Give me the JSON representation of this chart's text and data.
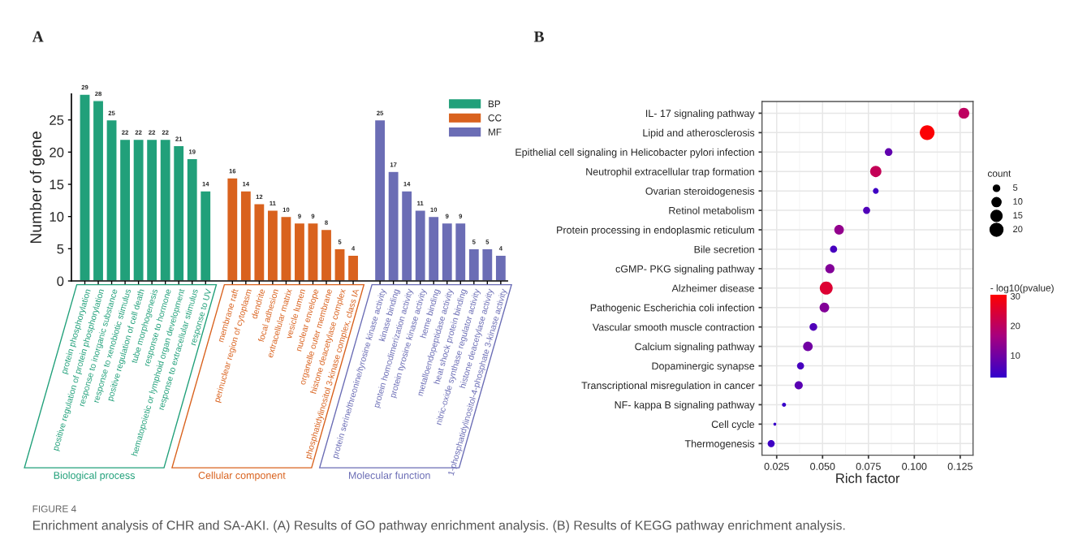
{
  "chart_data": [
    {
      "type": "bar",
      "title": "A",
      "ylabel": "Number of gene",
      "categories": [
        "protein phosphorylation",
        "positive regulation of protein phosphorylation",
        "response to inorganic substance",
        "response to xenobiotic stimulus",
        "positive regulation of cell death",
        "tube morphogenesis",
        "response to hormone",
        "hematopoietic or lymphoid organ development",
        "response to extracellular stimulus",
        "response to UV",
        null,
        "membrane raft",
        "perinuclear region of cytoplasm",
        "dendrite",
        "focal adhesion",
        "extracellular matrix",
        "vesicle lumen",
        "nuclear envelope",
        "organelle outer membrane",
        "histone deacetylase complex",
        "phosphatidylinositol 3-kinase complex, class IA",
        null,
        "protein serine/threonine/tyrosine kinase activity",
        "kinase binding",
        "protein homodimerization activity",
        "protein tyrosine kinase activity",
        "heme binding",
        "metalloendopeptidase activity",
        "heat shock protein binding",
        "nitric-oxide synthase regulator activity",
        "histone deacetylase activity",
        "1-phosphatidylinositol-4-phosphate 3-kinase activity"
      ],
      "series": [
        {
          "name": "BP",
          "color": "#21a07a",
          "values": [
            29,
            28,
            25,
            22,
            22,
            22,
            22,
            21,
            19,
            14,
            null,
            null,
            null,
            null,
            null,
            null,
            null,
            null,
            null,
            null,
            null,
            null,
            null,
            null,
            null,
            null,
            null,
            null,
            null,
            null,
            null,
            null
          ]
        },
        {
          "name": "CC",
          "color": "#d9621e",
          "values": [
            null,
            null,
            null,
            null,
            null,
            null,
            null,
            null,
            null,
            null,
            null,
            16,
            14,
            12,
            11,
            10,
            9,
            9,
            8,
            5,
            4,
            null,
            null,
            null,
            null,
            null,
            null,
            null,
            null,
            null,
            null,
            null
          ]
        },
        {
          "name": "MF",
          "color": "#6b6db5",
          "values": [
            null,
            null,
            null,
            null,
            null,
            null,
            null,
            null,
            null,
            null,
            null,
            null,
            null,
            null,
            null,
            null,
            null,
            null,
            null,
            null,
            null,
            null,
            25,
            17,
            14,
            11,
            10,
            9,
            9,
            5,
            5,
            4
          ]
        }
      ],
      "ylim": [
        0,
        29
      ],
      "yticks": [
        0,
        5,
        10,
        15,
        20,
        25
      ],
      "data_labels": true,
      "legend": "top right",
      "annotations": [
        "Biological process",
        "Cellular component",
        "Molecular function",
        "FIGURE 4",
        "Enrichment analysis of CHR and SA-AKI. (A) Results of GO pathway enrichment analysis. (B) Results of KEGG pathway enrichment analysis."
      ]
    },
    {
      "type": "bubble",
      "title": "B",
      "xlabel": "Rich factor",
      "orientation": "horizontal",
      "categories": [
        "IL- 17 signaling pathway",
        "Lipid and atherosclerosis",
        "Epithelial cell signaling in Helicobacter pylori infection",
        "Neutrophil extracellular trap formation",
        "Ovarian steroidogenesis",
        "Retinol metabolism",
        "Protein processing in endoplasmic reticulum",
        "Bile secretion",
        "cGMP- PKG signaling pathway",
        "Alzheimer disease",
        "Pathogenic Escherichia coli infection",
        "Vascular smooth muscle contraction",
        "Calcium signaling pathway",
        "Dopaminergic synapse",
        "Transcriptional misregulation in cancer",
        "NF- kappa B signaling pathway",
        "Cell cycle",
        "Thermogenesis"
      ],
      "values": [
        0.127,
        0.107,
        0.086,
        0.079,
        0.079,
        0.074,
        0.059,
        0.056,
        0.054,
        0.052,
        0.051,
        0.045,
        0.042,
        0.038,
        0.037,
        0.029,
        0.024,
        0.022
      ],
      "sizes": [
        14,
        26,
        7,
        15,
        4,
        6,
        11,
        6,
        10,
        20,
        11,
        7,
        11,
        6,
        8,
        2,
        1,
        6
      ],
      "cvalues": [
        20,
        30,
        8,
        21,
        4,
        6,
        14,
        5,
        12,
        25,
        12,
        6,
        10,
        5,
        7,
        3,
        3,
        4
      ],
      "size_legend": [
        5,
        10,
        15,
        20
      ],
      "legend_title": "count",
      "clabel": "- log10(pvalue)",
      "clim": [
        2.5,
        30.5
      ],
      "cticks": [
        10,
        20,
        30
      ],
      "xlim": [
        0.017,
        0.132
      ],
      "xticks": [
        {
          "value": 0.025,
          "label": "0.025"
        },
        {
          "value": 0.05,
          "label": "0.050"
        },
        {
          "value": 0.075,
          "label": "0.075"
        },
        {
          "value": 0.1,
          "label": "0.100"
        },
        {
          "value": 0.125,
          "label": "0.125"
        }
      ],
      "grid": true
    }
  ]
}
